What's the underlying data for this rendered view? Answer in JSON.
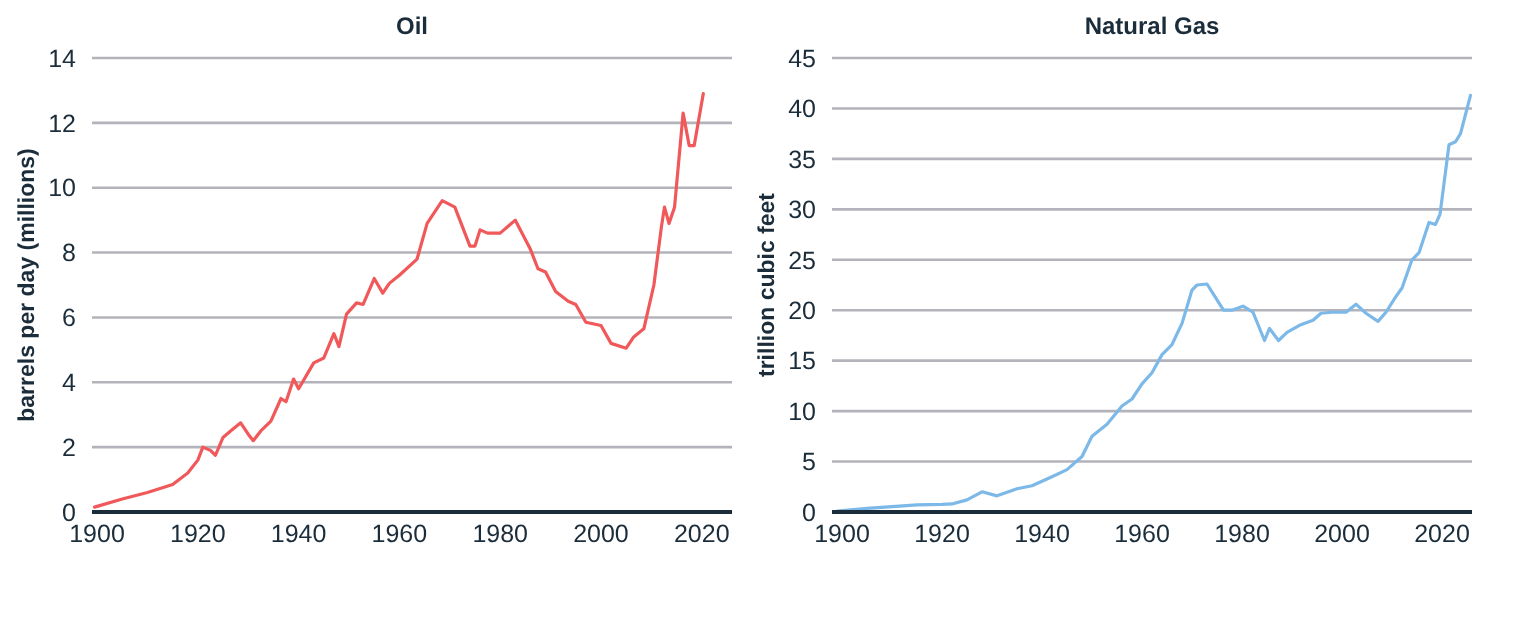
{
  "chart_data": [
    {
      "type": "line",
      "title": "Oil",
      "ylabel": "barrels per day (millions)",
      "grid": "y",
      "xlim": [
        1899,
        2026
      ],
      "xticks": [
        1900,
        1920,
        1940,
        1960,
        1980,
        2000,
        2020
      ],
      "ylim": [
        0,
        14
      ],
      "yticks": [
        0,
        2,
        4,
        6,
        8,
        10,
        12,
        14
      ],
      "x": [
        1899.5,
        1905,
        1910,
        1915,
        1918,
        1920,
        1921,
        1922.5,
        1923.5,
        1925,
        1926.5,
        1928.5,
        1930,
        1931,
        1932.5,
        1934.5,
        1936.5,
        1937.5,
        1939,
        1940,
        1943,
        1945,
        1947,
        1948,
        1949.5,
        1951.5,
        1952.8,
        1955,
        1956.7,
        1958,
        1960,
        1963.5,
        1965.5,
        1968.5,
        1971,
        1974,
        1975,
        1976,
        1977.5,
        1980,
        1983,
        1986,
        1987.5,
        1989,
        1991,
        1993.5,
        1995,
        1997,
        2000,
        2002,
        2005,
        2006.5,
        2008.5,
        2010.5,
        2012,
        2012.6,
        2013.5,
        2014.6,
        2016.3,
        2017.5,
        2018.5,
        2020.3
      ],
      "series": [
        {
          "color": "#f0585a",
          "values": [
            0.15,
            0.4,
            0.6,
            0.85,
            1.2,
            1.6,
            2.0,
            1.9,
            1.75,
            2.3,
            2.5,
            2.75,
            2.4,
            2.2,
            2.5,
            2.8,
            3.5,
            3.4,
            4.1,
            3.8,
            4.6,
            4.75,
            5.5,
            5.1,
            6.1,
            6.45,
            6.4,
            7.2,
            6.75,
            7.05,
            7.3,
            7.8,
            8.9,
            9.6,
            9.4,
            8.2,
            8.2,
            8.7,
            8.6,
            8.6,
            9.0,
            8.1,
            7.5,
            7.4,
            6.8,
            6.5,
            6.4,
            5.85,
            5.75,
            5.2,
            5.05,
            5.4,
            5.65,
            7.0,
            8.8,
            9.4,
            8.9,
            9.4,
            12.3,
            11.3,
            11.3,
            12.9
          ]
        }
      ]
    },
    {
      "type": "line",
      "title": "Natural Gas",
      "ylabel": "trillion cubic feet",
      "grid": "y",
      "xlim": [
        1898,
        2026
      ],
      "xticks": [
        1900,
        1920,
        1940,
        1960,
        1980,
        2000,
        2020
      ],
      "ylim": [
        0,
        45
      ],
      "yticks": [
        0,
        5,
        10,
        15,
        20,
        25,
        30,
        35,
        40,
        45
      ],
      "x": [
        1899,
        1905,
        1915,
        1920,
        1922,
        1925,
        1928,
        1931,
        1935,
        1938,
        1942,
        1945,
        1948,
        1950,
        1953,
        1956,
        1958,
        1960,
        1962,
        1964,
        1966,
        1968,
        1970,
        1971,
        1973,
        1976.3,
        1978,
        1980.2,
        1982.2,
        1984.5,
        1985.5,
        1987.3,
        1989,
        1991.5,
        1994.2,
        1995.8,
        1998,
        2000.8,
        2002.8,
        2004.8,
        2007.2,
        2008.8,
        2010.7,
        2012,
        2014,
        2015.4,
        2017.4,
        2018.7,
        2019.6,
        2021.4,
        2022.7,
        2023.7,
        2025.7
      ],
      "series": [
        {
          "color": "#7cb9e8",
          "values": [
            0.1,
            0.35,
            0.7,
            0.75,
            0.8,
            1.2,
            2.0,
            1.6,
            2.3,
            2.6,
            3.5,
            4.2,
            5.5,
            7.5,
            8.7,
            10.5,
            11.2,
            12.7,
            13.8,
            15.6,
            16.6,
            18.7,
            22.0,
            22.5,
            22.6,
            20.0,
            20.0,
            20.4,
            19.8,
            17.0,
            18.2,
            17.0,
            17.8,
            18.5,
            19.0,
            19.7,
            19.8,
            19.8,
            20.6,
            19.7,
            18.9,
            19.8,
            21.3,
            22.2,
            25.0,
            25.7,
            28.7,
            28.5,
            29.5,
            36.4,
            36.7,
            37.5,
            41.3
          ]
        }
      ]
    }
  ]
}
